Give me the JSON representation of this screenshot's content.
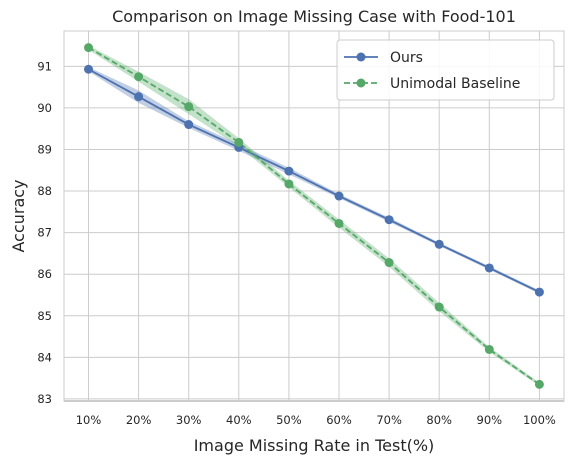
{
  "chart_data": {
    "type": "line",
    "title": "Comparison on Image Missing Case with Food-101",
    "xlabel": "Image Missing Rate in Test(%)",
    "ylabel": "Accuracy",
    "categories": [
      "10%",
      "20%",
      "30%",
      "40%",
      "50%",
      "60%",
      "70%",
      "80%",
      "90%",
      "100%"
    ],
    "ylim": [
      82.95,
      91.85
    ],
    "yticks": [
      83,
      84,
      85,
      86,
      87,
      88,
      89,
      90,
      91
    ],
    "grid": true,
    "legend_position": "top-right",
    "series": [
      {
        "name": "Ours",
        "values": [
          90.93,
          90.27,
          89.6,
          89.05,
          88.48,
          87.88,
          87.31,
          86.72,
          86.15,
          85.57
        ],
        "band": [
          0.05,
          0.15,
          0.08,
          0.08,
          0.08,
          0.05,
          0.05,
          0.04,
          0.04,
          0.04
        ],
        "color": "#4c72b0",
        "linestyle": "solid"
      },
      {
        "name": "Unimodal Baseline",
        "values": [
          91.45,
          90.75,
          90.03,
          89.17,
          88.17,
          87.22,
          86.28,
          85.21,
          84.19,
          83.35
        ],
        "band": [
          0.05,
          0.12,
          0.18,
          0.1,
          0.08,
          0.1,
          0.1,
          0.1,
          0.06,
          0.04
        ],
        "color": "#55a868",
        "linestyle": "dashed"
      }
    ]
  }
}
